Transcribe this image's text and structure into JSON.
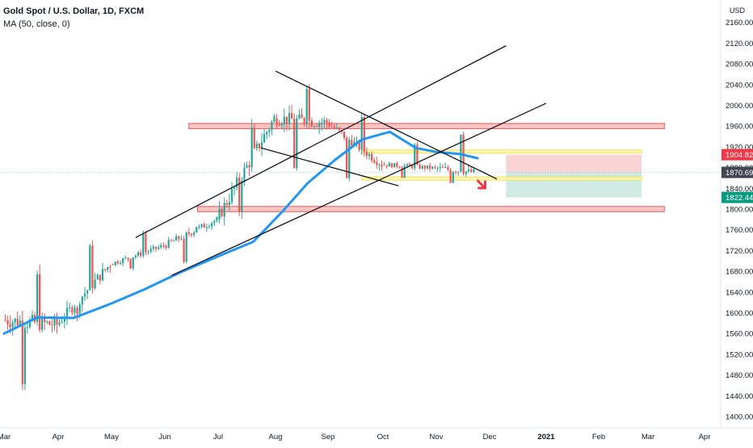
{
  "legend": {
    "symbol": "Gold Spot / U.S. Dollar, 1D, FXCM",
    "indicator": "MA (50, close, 0)"
  },
  "price_axis": {
    "currency": "USD",
    "ticks": [
      "2200.00",
      "2160.00",
      "2120.00",
      "2080.00",
      "2040.00",
      "2000.00",
      "1960.00",
      "1920.00",
      "1880.00",
      "1840.00",
      "1800.00",
      "1760.00",
      "1720.00",
      "1680.00",
      "1640.00",
      "1600.00",
      "1560.00",
      "1520.00",
      "1480.00",
      "1440.00",
      "1400.00"
    ],
    "price_labels": [
      {
        "text": "1904.82",
        "value": 1904.82,
        "color": "#f23645"
      },
      {
        "text": "1870.90",
        "value": 1870.9,
        "color": "#26a69a"
      },
      {
        "text": "1870.69",
        "value": 1870.69,
        "color": "#434651"
      },
      {
        "text": "1822.44",
        "value": 1822.44,
        "color": "#089981"
      }
    ]
  },
  "time_axis": {
    "labels": [
      "Mar",
      "Apr",
      "May",
      "Jun",
      "Jul",
      "Aug",
      "Sep",
      "Oct",
      "Nov",
      "Dec",
      "2021",
      "Feb",
      "Mar",
      "Apr"
    ]
  },
  "colors": {
    "up": "#26a69a",
    "down": "#ef5350",
    "ma": "#2196f3",
    "trendline": "#131722",
    "red_zone": "#f8b8b8",
    "yellow_zone": "#fff7a8",
    "arrow": "#f23645"
  },
  "chart_data": {
    "type": "candlestick",
    "title": "Gold Spot / U.S. Dollar, 1D, FXCM",
    "ylim": [
      1400,
      2200
    ],
    "x_range": [
      "2020-03",
      "2021-04"
    ],
    "grid": false,
    "candles_monthly_summary": [
      {
        "month": "2020-03",
        "open": 1586,
        "high": 1704,
        "low": 1451,
        "close": 1577
      },
      {
        "month": "2020-04",
        "open": 1577,
        "high": 1748,
        "low": 1567,
        "close": 1694
      },
      {
        "month": "2020-05",
        "open": 1694,
        "high": 1765,
        "low": 1680,
        "close": 1729
      },
      {
        "month": "2020-06",
        "open": 1729,
        "high": 1785,
        "low": 1671,
        "close": 1780
      },
      {
        "month": "2020-07",
        "open": 1780,
        "high": 1984,
        "low": 1757,
        "close": 1975
      },
      {
        "month": "2020-08",
        "open": 1975,
        "high": 2075,
        "low": 1863,
        "close": 1967
      },
      {
        "month": "2020-09",
        "open": 1967,
        "high": 1992,
        "low": 1848,
        "close": 1886
      },
      {
        "month": "2020-10",
        "open": 1886,
        "high": 1933,
        "low": 1860,
        "close": 1879
      },
      {
        "month": "2020-11",
        "open": 1879,
        "high": 1965,
        "low": 1851,
        "close": 1871
      }
    ],
    "series": [
      {
        "name": "MA (50, close, 0)",
        "type": "line"
      }
    ],
    "moving_average": [
      {
        "date": "2020-03-01",
        "value": 1560
      },
      {
        "date": "2020-03-20",
        "value": 1591
      },
      {
        "date": "2020-04-10",
        "value": 1590
      },
      {
        "date": "2020-05-01",
        "value": 1618
      },
      {
        "date": "2020-05-20",
        "value": 1645
      },
      {
        "date": "2020-06-10",
        "value": 1678
      },
      {
        "date": "2020-07-01",
        "value": 1709
      },
      {
        "date": "2020-07-20",
        "value": 1737
      },
      {
        "date": "2020-08-05",
        "value": 1795
      },
      {
        "date": "2020-08-20",
        "value": 1850
      },
      {
        "date": "2020-09-05",
        "value": 1895
      },
      {
        "date": "2020-09-20",
        "value": 1934
      },
      {
        "date": "2020-10-05",
        "value": 1949
      },
      {
        "date": "2020-10-20",
        "value": 1918
      },
      {
        "date": "2020-11-01",
        "value": 1910
      },
      {
        "date": "2020-11-15",
        "value": 1906
      },
      {
        "date": "2020-11-25",
        "value": 1898
      }
    ],
    "horizontal_zones": [
      {
        "color": "red",
        "from": 1955,
        "to": 1965,
        "start": "2020-06-15",
        "end": "2021-03-10"
      },
      {
        "color": "red",
        "from": 1795,
        "to": 1805,
        "start": "2020-06-20",
        "end": "2021-03-10"
      },
      {
        "color": "yellow",
        "from": 1908,
        "to": 1914,
        "start": "2020-09-20",
        "end": "2021-02-28"
      },
      {
        "color": "yellow",
        "from": 1857,
        "to": 1862,
        "start": "2020-09-20",
        "end": "2021-02-28"
      }
    ],
    "position_tool": {
      "entry": 1870.69,
      "stop": 1904.82,
      "target": 1822.44,
      "start": "2020-12-10",
      "end": "2021-02-28"
    },
    "trendlines": [
      {
        "from": {
          "date": "2020-05-15",
          "value": 1745
        },
        "to": {
          "date": "2020-12-10",
          "value": 2115
        }
      },
      {
        "from": {
          "date": "2020-06-05",
          "value": 1672
        },
        "to": {
          "date": "2021-01-01",
          "value": 2004
        }
      },
      {
        "from": {
          "date": "2020-08-01",
          "value": 2066
        },
        "to": {
          "date": "2020-12-05",
          "value": 1858
        }
      },
      {
        "from": {
          "date": "2020-07-24",
          "value": 1918
        },
        "to": {
          "date": "2020-10-10",
          "value": 1845
        }
      }
    ],
    "annotations": [
      {
        "type": "arrow",
        "direction": "down-right",
        "date": "2020-11-28",
        "value": 1842
      }
    ]
  }
}
